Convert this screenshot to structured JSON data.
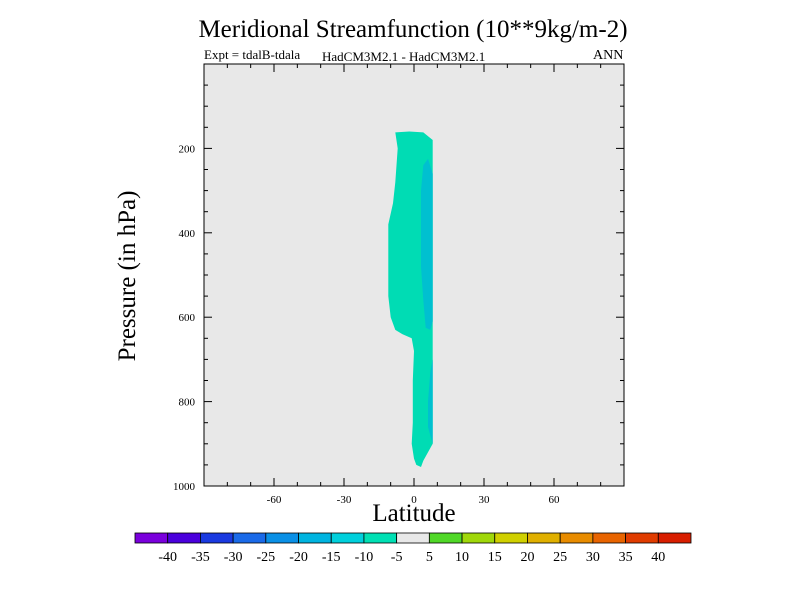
{
  "title": "Meridional Streamfunction (10**9kg/m-2)",
  "subtitle_left": "Expt = tdalB-tdala",
  "subtitle_center": "HadCM3M2.1 - HadCM3M2.1",
  "subtitle_right": "ANN",
  "chart_data": {
    "type": "contour",
    "title": "Meridional Streamfunction (10**9kg/m-2)",
    "xlabel": "Latitude",
    "ylabel": "Pressure (in hPa)",
    "xlim": [
      -90,
      90
    ],
    "ylim": [
      1000,
      0
    ],
    "xticks": [
      -60,
      -30,
      0,
      30,
      60
    ],
    "yticks": [
      200,
      400,
      600,
      800,
      1000
    ],
    "background_value_range": "-5 to 5",
    "regions": [
      {
        "name": "-10 to -5",
        "color": "#00dcb4",
        "outline": [
          [
            -8,
            162
          ],
          [
            -2,
            160
          ],
          [
            4,
            162
          ],
          [
            8,
            180
          ],
          [
            8,
            400
          ],
          [
            8,
            700
          ],
          [
            8,
            750
          ],
          [
            8,
            900
          ],
          [
            6,
            920
          ],
          [
            4,
            940
          ],
          [
            3,
            955
          ],
          [
            1,
            950
          ],
          [
            0,
            935
          ],
          [
            -1,
            900
          ],
          [
            -0.5,
            850
          ],
          [
            -0.5,
            750
          ],
          [
            0,
            680
          ],
          [
            -1,
            650
          ],
          [
            -5,
            640
          ],
          [
            -8,
            630
          ],
          [
            -10,
            600
          ],
          [
            -11,
            550
          ],
          [
            -11,
            450
          ],
          [
            -11,
            380
          ],
          [
            -9,
            330
          ],
          [
            -8,
            280
          ],
          [
            -7,
            200
          ]
        ]
      },
      {
        "name": "-15 to -10",
        "color": "#00c0d0",
        "outline": [
          [
            6,
            225
          ],
          [
            8,
            260
          ],
          [
            8,
            400
          ],
          [
            8,
            610
          ],
          [
            7,
            630
          ],
          [
            5,
            625
          ],
          [
            4,
            560
          ],
          [
            3,
            480
          ],
          [
            3,
            410
          ],
          [
            3,
            300
          ],
          [
            4,
            240
          ]
        ]
      },
      {
        "name": "-15 to -10 (lower)",
        "color": "#00c0d0",
        "outline": [
          [
            8,
            700
          ],
          [
            8,
            760
          ],
          [
            8,
            900
          ],
          [
            7,
            880
          ],
          [
            6,
            860
          ],
          [
            6,
            800
          ],
          [
            7,
            730
          ]
        ]
      }
    ],
    "colorbar": {
      "levels": [
        "-40",
        "-35",
        "-30",
        "-25",
        "-20",
        "-15",
        "-10",
        "-5",
        "5",
        "10",
        "15",
        "20",
        "25",
        "30",
        "35",
        "40"
      ],
      "colors": [
        "#7a00dc",
        "#4a00dc",
        "#1a3ae0",
        "#1a6ae8",
        "#0a90e6",
        "#00b4e0",
        "#00d0dc",
        "#00e0b4",
        "#e8e8e8",
        "#50d828",
        "#a0d80a",
        "#d0d000",
        "#e0b000",
        "#e88c00",
        "#e86400",
        "#e03c00",
        "#d81e00"
      ]
    }
  }
}
